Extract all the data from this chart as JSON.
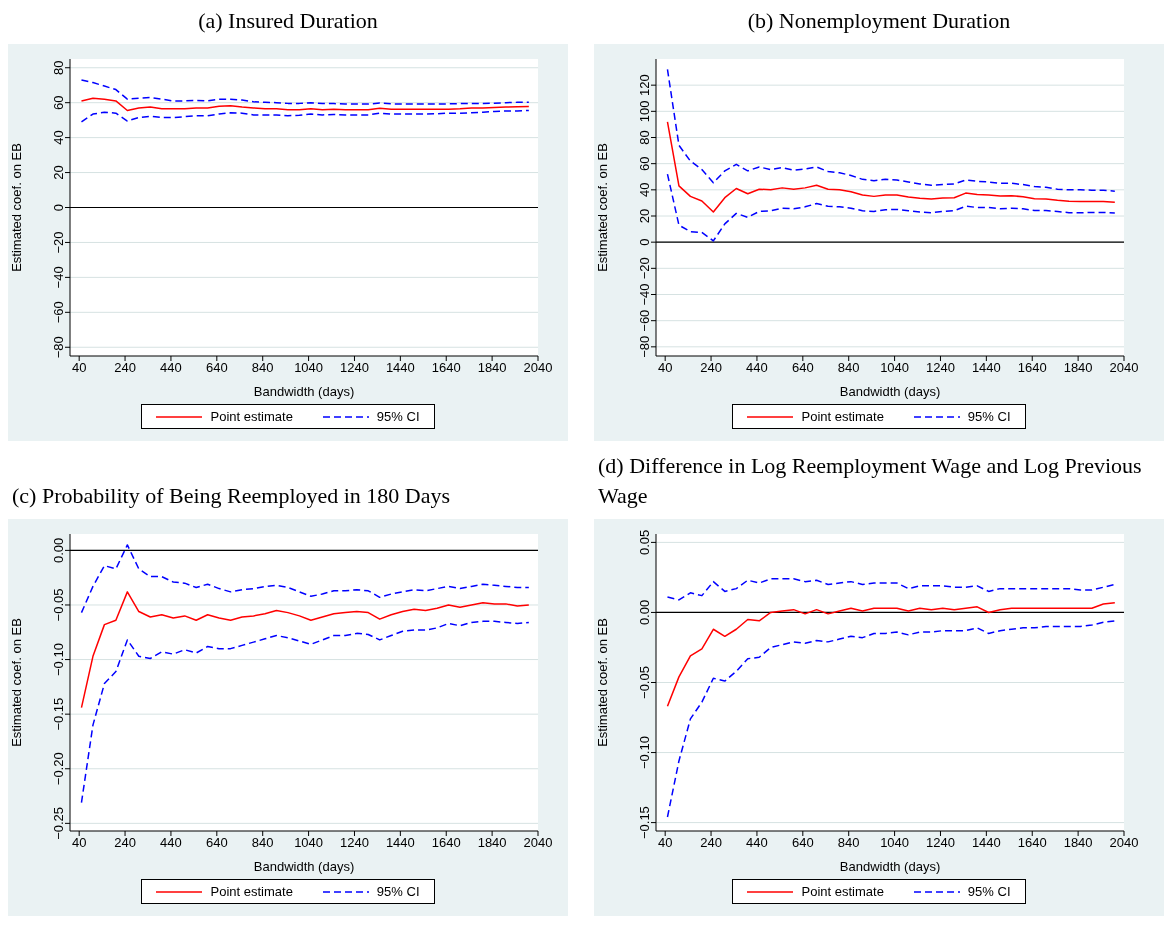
{
  "chart_data": [
    {
      "type": "line",
      "title": "(a) Insured Duration",
      "xlabel": "Bandwidth (days)",
      "ylabel": "Estimated coef. on EB",
      "xlim": [
        0,
        2040
      ],
      "xticks": [
        40,
        240,
        440,
        640,
        840,
        1040,
        1240,
        1440,
        1640,
        1840,
        2040
      ],
      "ylim": [
        -85,
        85
      ],
      "yticks": [
        {
          "value": -80,
          "label": "−80"
        },
        {
          "value": -60,
          "label": "−60"
        },
        {
          "value": -40,
          "label": "−40"
        },
        {
          "value": -20,
          "label": "−20"
        },
        {
          "value": 0,
          "label": "0"
        },
        {
          "value": 20,
          "label": "20"
        },
        {
          "value": 40,
          "label": "40"
        },
        {
          "value": 60,
          "label": "60"
        },
        {
          "value": 80,
          "label": "80"
        }
      ],
      "grid": "y",
      "legend": "bottom",
      "marker": "none",
      "ref_lines": [
        {
          "axis": "y",
          "value": 0,
          "color": "#000000"
        }
      ],
      "x": [
        50,
        100,
        150,
        200,
        250,
        300,
        350,
        400,
        450,
        500,
        550,
        600,
        650,
        700,
        750,
        800,
        850,
        900,
        950,
        1000,
        1050,
        1100,
        1150,
        1200,
        1250,
        1300,
        1350,
        1400,
        1450,
        1500,
        1550,
        1600,
        1650,
        1700,
        1750,
        1800,
        1850,
        1900,
        1950,
        2000
      ],
      "series": [
        {
          "name": "Point estimate",
          "color": "#ff0000",
          "line_style": "solid",
          "values": [
            61,
            62.5,
            62,
            61,
            55.5,
            57,
            57.5,
            56.5,
            56.5,
            56.5,
            57,
            57,
            58,
            58.2,
            57.5,
            57,
            56.5,
            56.5,
            56,
            56,
            56.5,
            56,
            56.2,
            56,
            56,
            56,
            56.8,
            56.2,
            56.2,
            56.2,
            56.2,
            56.2,
            56.3,
            56.5,
            57,
            57,
            57.3,
            57.5,
            57.7,
            57.8
          ]
        },
        {
          "name": "95% CI",
          "color": "#0000ff",
          "line_style": "dashed",
          "values": [
            73,
            71.5,
            69.5,
            67.5,
            62,
            62.5,
            63,
            62,
            61,
            61,
            61.3,
            61,
            62,
            62,
            61.5,
            60.5,
            60.2,
            60,
            59.6,
            59.6,
            60,
            59.5,
            59.5,
            59.2,
            59.2,
            59.2,
            59.8,
            59.3,
            59.3,
            59.3,
            59.3,
            59.3,
            59.3,
            59.5,
            59.6,
            59.6,
            59.7,
            60,
            60.2,
            60.3
          ]
        },
        {
          "color": "#0000ff",
          "line_style": "dashed",
          "values": [
            49,
            53.5,
            54.5,
            54,
            49.5,
            51.5,
            52.2,
            51.5,
            51.5,
            52,
            52.5,
            52.5,
            53.5,
            54.2,
            54,
            53,
            53,
            53,
            52.5,
            52.8,
            53.5,
            53,
            53.2,
            53,
            53,
            53,
            54,
            53.5,
            53.5,
            53.5,
            53.5,
            53.7,
            54,
            54,
            54.2,
            54.5,
            55,
            55.2,
            55.3,
            55.5
          ]
        }
      ]
    },
    {
      "type": "line",
      "title": "(b) Nonemployment Duration",
      "xlabel": "Bandwidth (days)",
      "ylabel": "Estimated coef. on EB",
      "xlim": [
        0,
        2040
      ],
      "xticks": [
        40,
        240,
        440,
        640,
        840,
        1040,
        1240,
        1440,
        1640,
        1840,
        2040
      ],
      "ylim": [
        -87,
        140
      ],
      "yticks": [
        {
          "value": -80,
          "label": "−80"
        },
        {
          "value": -60,
          "label": "−60"
        },
        {
          "value": -40,
          "label": "−40"
        },
        {
          "value": -20,
          "label": "−20"
        },
        {
          "value": 0,
          "label": "0"
        },
        {
          "value": 20,
          "label": "20"
        },
        {
          "value": 40,
          "label": "40"
        },
        {
          "value": 60,
          "label": "60"
        },
        {
          "value": 80,
          "label": "80"
        },
        {
          "value": 100,
          "label": "100"
        },
        {
          "value": 120,
          "label": "120"
        }
      ],
      "grid": "y",
      "legend": "bottom",
      "marker": "none",
      "ref_lines": [
        {
          "axis": "y",
          "value": 0,
          "color": "#000000"
        }
      ],
      "x": [
        50,
        100,
        150,
        200,
        250,
        300,
        350,
        400,
        450,
        500,
        550,
        600,
        650,
        700,
        750,
        800,
        850,
        900,
        950,
        1000,
        1050,
        1100,
        1150,
        1200,
        1250,
        1300,
        1350,
        1400,
        1450,
        1500,
        1550,
        1600,
        1650,
        1700,
        1750,
        1800,
        1850,
        1900,
        1950,
        2000
      ],
      "series": [
        {
          "name": "Point estimate",
          "color": "#ff0000",
          "line_style": "solid",
          "values": [
            92,
            43,
            35,
            31.5,
            23,
            34,
            41,
            37,
            40.5,
            40,
            41.5,
            40.5,
            41.5,
            43.5,
            40.5,
            40,
            38.5,
            36,
            35,
            36,
            36,
            34.5,
            33.5,
            33,
            33.7,
            34,
            37.5,
            36.5,
            36,
            35.3,
            35.5,
            34.7,
            33.2,
            33,
            32,
            31.2,
            31,
            31,
            31,
            30.5
          ]
        },
        {
          "name": "95% CI",
          "color": "#0000ff",
          "line_style": "dashed",
          "values": [
            132,
            74,
            62,
            55.5,
            45.5,
            54.5,
            59.5,
            54.5,
            57.5,
            55.5,
            57,
            55,
            56,
            57.5,
            54,
            53,
            51,
            48,
            47,
            48,
            47.5,
            46,
            44.5,
            43.5,
            44,
            44.5,
            47.5,
            46.5,
            46,
            45,
            45,
            44,
            42.5,
            42,
            40.5,
            40,
            40,
            39.7,
            39.7,
            39
          ]
        },
        {
          "color": "#0000ff",
          "line_style": "dashed",
          "values": [
            52,
            13,
            8,
            7.5,
            1,
            14,
            22,
            19,
            23.5,
            24,
            26,
            25.5,
            27,
            29.5,
            27.5,
            27,
            26,
            24,
            23.5,
            24.8,
            25,
            24,
            23,
            22.5,
            23.5,
            24,
            27.5,
            26.5,
            26.5,
            25.5,
            26,
            25.5,
            24.2,
            24.2,
            23.5,
            22.5,
            22.5,
            22.7,
            22.7,
            22.3
          ]
        }
      ]
    },
    {
      "type": "line",
      "title": "(c) Probability of Being Reemployed in 180 Days",
      "xlabel": "Bandwidth (days)",
      "ylabel": "Estimated coef. on EB",
      "xlim": [
        0,
        2040
      ],
      "xticks": [
        40,
        240,
        440,
        640,
        840,
        1040,
        1240,
        1440,
        1640,
        1840,
        2040
      ],
      "ylim": [
        -0.257,
        0.015
      ],
      "yticks": [
        {
          "value": -0.25,
          "label": "−0.25"
        },
        {
          "value": -0.2,
          "label": "−0.20"
        },
        {
          "value": -0.15,
          "label": "−0.15"
        },
        {
          "value": -0.1,
          "label": "−0.10"
        },
        {
          "value": -0.05,
          "label": "−0.05"
        },
        {
          "value": 0,
          "label": "0.00"
        }
      ],
      "grid": "y",
      "legend": "bottom",
      "marker": "none",
      "ref_lines": [
        {
          "axis": "y",
          "value": 0,
          "color": "#000000"
        }
      ],
      "x": [
        50,
        100,
        150,
        200,
        250,
        300,
        350,
        400,
        450,
        500,
        550,
        600,
        650,
        700,
        750,
        800,
        850,
        900,
        950,
        1000,
        1050,
        1100,
        1150,
        1200,
        1250,
        1300,
        1350,
        1400,
        1450,
        1500,
        1550,
        1600,
        1650,
        1700,
        1750,
        1800,
        1850,
        1900,
        1950,
        2000
      ],
      "series": [
        {
          "name": "Point estimate",
          "color": "#ff0000",
          "line_style": "solid",
          "values": [
            -0.144,
            -0.097,
            -0.068,
            -0.064,
            -0.038,
            -0.056,
            -0.061,
            -0.059,
            -0.062,
            -0.06,
            -0.064,
            -0.059,
            -0.062,
            -0.064,
            -0.061,
            -0.06,
            -0.058,
            -0.055,
            -0.057,
            -0.06,
            -0.064,
            -0.061,
            -0.058,
            -0.057,
            -0.056,
            -0.057,
            -0.063,
            -0.059,
            -0.056,
            -0.054,
            -0.055,
            -0.053,
            -0.05,
            -0.052,
            -0.05,
            -0.048,
            -0.049,
            -0.049,
            -0.051,
            -0.05
          ]
        },
        {
          "name": "95% CI",
          "color": "#0000ff",
          "line_style": "dashed",
          "values": [
            -0.057,
            -0.033,
            -0.014,
            -0.017,
            0.005,
            -0.017,
            -0.024,
            -0.024,
            -0.029,
            -0.03,
            -0.034,
            -0.031,
            -0.035,
            -0.038,
            -0.036,
            -0.035,
            -0.033,
            -0.032,
            -0.034,
            -0.038,
            -0.042,
            -0.04,
            -0.037,
            -0.037,
            -0.036,
            -0.037,
            -0.043,
            -0.04,
            -0.038,
            -0.036,
            -0.037,
            -0.035,
            -0.033,
            -0.035,
            -0.033,
            -0.031,
            -0.032,
            -0.033,
            -0.034,
            -0.034
          ]
        },
        {
          "color": "#0000ff",
          "line_style": "dashed",
          "values": [
            -0.231,
            -0.16,
            -0.122,
            -0.111,
            -0.082,
            -0.097,
            -0.099,
            -0.093,
            -0.095,
            -0.091,
            -0.094,
            -0.088,
            -0.09,
            -0.09,
            -0.087,
            -0.084,
            -0.081,
            -0.078,
            -0.08,
            -0.083,
            -0.086,
            -0.082,
            -0.078,
            -0.078,
            -0.076,
            -0.077,
            -0.082,
            -0.078,
            -0.074,
            -0.073,
            -0.073,
            -0.071,
            -0.067,
            -0.069,
            -0.066,
            -0.065,
            -0.065,
            -0.066,
            -0.067,
            -0.066
          ]
        }
      ]
    },
    {
      "type": "line",
      "title": "(d) Difference in Log Reemployment Wage and Log Previous Wage",
      "xlabel": "Bandwidth (days)",
      "ylabel": "Estimated coef. on EB",
      "xlim": [
        0,
        2040
      ],
      "xticks": [
        40,
        240,
        440,
        640,
        840,
        1040,
        1240,
        1440,
        1640,
        1840,
        2040
      ],
      "ylim": [
        -0.156,
        0.056
      ],
      "yticks": [
        {
          "value": -0.15,
          "label": "−0.15"
        },
        {
          "value": -0.1,
          "label": "−0.10"
        },
        {
          "value": -0.05,
          "label": "−0.05"
        },
        {
          "value": 0,
          "label": "0.00"
        },
        {
          "value": 0.05,
          "label": "0.05"
        }
      ],
      "grid": "y",
      "legend": "bottom",
      "marker": "none",
      "ref_lines": [
        {
          "axis": "y",
          "value": 0,
          "color": "#000000"
        }
      ],
      "x": [
        50,
        100,
        150,
        200,
        250,
        300,
        350,
        400,
        450,
        500,
        550,
        600,
        650,
        700,
        750,
        800,
        850,
        900,
        950,
        1000,
        1050,
        1100,
        1150,
        1200,
        1250,
        1300,
        1350,
        1400,
        1450,
        1500,
        1550,
        1600,
        1650,
        1700,
        1750,
        1800,
        1850,
        1900,
        1950,
        2000
      ],
      "series": [
        {
          "name": "Point estimate",
          "color": "#ff0000",
          "line_style": "solid",
          "values": [
            -0.067,
            -0.046,
            -0.031,
            -0.026,
            -0.012,
            -0.017,
            -0.012,
            -0.005,
            -0.006,
            0,
            0.001,
            0.002,
            -0.001,
            0.002,
            -0.001,
            0.001,
            0.003,
            0.001,
            0.003,
            0.003,
            0.003,
            0.001,
            0.003,
            0.002,
            0.003,
            0.002,
            0.003,
            0.004,
            0,
            0.002,
            0.003,
            0.003,
            0.003,
            0.003,
            0.003,
            0.003,
            0.003,
            0.003,
            0.006,
            0.007
          ]
        },
        {
          "name": "95% CI",
          "color": "#0000ff",
          "line_style": "dashed",
          "values": [
            0.011,
            0.009,
            0.014,
            0.012,
            0.022,
            0.015,
            0.017,
            0.023,
            0.021,
            0.024,
            0.024,
            0.024,
            0.022,
            0.023,
            0.02,
            0.021,
            0.022,
            0.02,
            0.021,
            0.021,
            0.021,
            0.017,
            0.019,
            0.019,
            0.019,
            0.018,
            0.018,
            0.019,
            0.015,
            0.017,
            0.017,
            0.017,
            0.017,
            0.017,
            0.017,
            0.017,
            0.016,
            0.016,
            0.018,
            0.02
          ]
        },
        {
          "color": "#0000ff",
          "line_style": "dashed",
          "values": [
            -0.146,
            -0.106,
            -0.076,
            -0.064,
            -0.047,
            -0.049,
            -0.042,
            -0.033,
            -0.032,
            -0.025,
            -0.023,
            -0.021,
            -0.022,
            -0.02,
            -0.021,
            -0.019,
            -0.017,
            -0.018,
            -0.015,
            -0.015,
            -0.014,
            -0.016,
            -0.014,
            -0.014,
            -0.013,
            -0.013,
            -0.013,
            -0.011,
            -0.015,
            -0.013,
            -0.012,
            -0.011,
            -0.011,
            -0.01,
            -0.01,
            -0.01,
            -0.01,
            -0.009,
            -0.007,
            -0.006
          ]
        }
      ]
    }
  ]
}
